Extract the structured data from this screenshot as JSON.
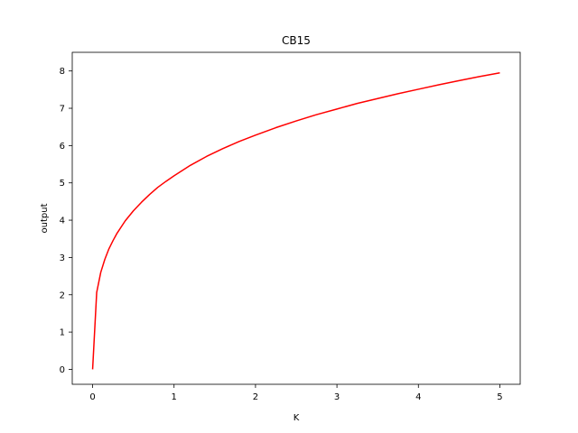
{
  "chart_data": {
    "type": "line",
    "title": "CB15",
    "xlabel": "K",
    "ylabel": "output",
    "xlim": [
      -0.25,
      5.25
    ],
    "ylim": [
      -0.4,
      8.5
    ],
    "xticks": [
      0,
      1,
      2,
      3,
      4,
      5
    ],
    "yticks": [
      0,
      1,
      2,
      3,
      4,
      5,
      6,
      7,
      8
    ],
    "grid": false,
    "series": [
      {
        "color": "#ff0000",
        "x": [
          0,
          0.05,
          0.1,
          0.15,
          0.2,
          0.25,
          0.3,
          0.4,
          0.5,
          0.6,
          0.7,
          0.8,
          0.9,
          1.0,
          1.2,
          1.4,
          1.6,
          1.8,
          2.0,
          2.25,
          2.5,
          2.75,
          3.0,
          3.25,
          3.5,
          3.75,
          4.0,
          4.25,
          4.5,
          4.75,
          5.0
        ],
        "y": [
          0,
          2.06,
          2.6,
          2.95,
          3.23,
          3.45,
          3.65,
          3.98,
          4.25,
          4.48,
          4.69,
          4.88,
          5.04,
          5.19,
          5.47,
          5.71,
          5.92,
          6.11,
          6.28,
          6.48,
          6.66,
          6.83,
          6.98,
          7.13,
          7.26,
          7.39,
          7.51,
          7.63,
          7.74,
          7.85,
          7.95
        ]
      }
    ]
  }
}
